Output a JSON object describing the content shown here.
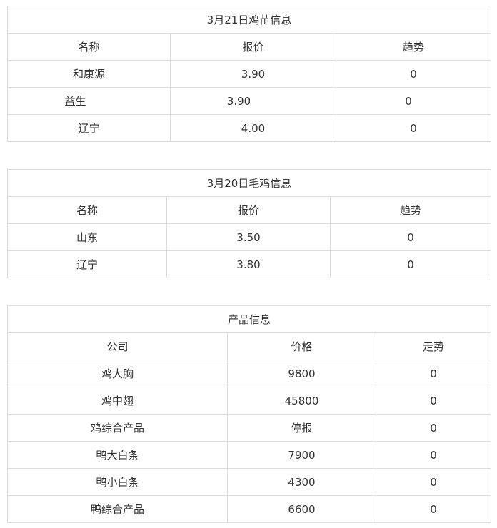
{
  "tables": [
    {
      "title": "3月21日鸡苗信息",
      "headers": [
        "名称",
        "报价",
        "趋势"
      ],
      "rows": [
        [
          "和康源",
          "3.90",
          "0"
        ],
        [
          "益生",
          "3.90",
          "0"
        ],
        [
          "辽宁",
          "4.00",
          "0"
        ]
      ]
    },
    {
      "title": "3月20日毛鸡信息",
      "headers": [
        "名称",
        "报价",
        "趋势"
      ],
      "rows": [
        [
          "山东",
          "3.50",
          "0"
        ],
        [
          "辽宁",
          "3.80",
          "0"
        ]
      ]
    },
    {
      "title": "产品信息",
      "headers": [
        "公司",
        "价格",
        "走势"
      ],
      "rows": [
        [
          "鸡大胸",
          "9800",
          "0"
        ],
        [
          "鸡中翅",
          "45800",
          "0"
        ],
        [
          "鸡综合产品",
          "停报",
          "0"
        ],
        [
          "鸭大白条",
          "7900",
          "0"
        ],
        [
          "鸭小白条",
          "4300",
          "0"
        ],
        [
          "鸭综合产品",
          "6600",
          "0"
        ]
      ]
    }
  ]
}
